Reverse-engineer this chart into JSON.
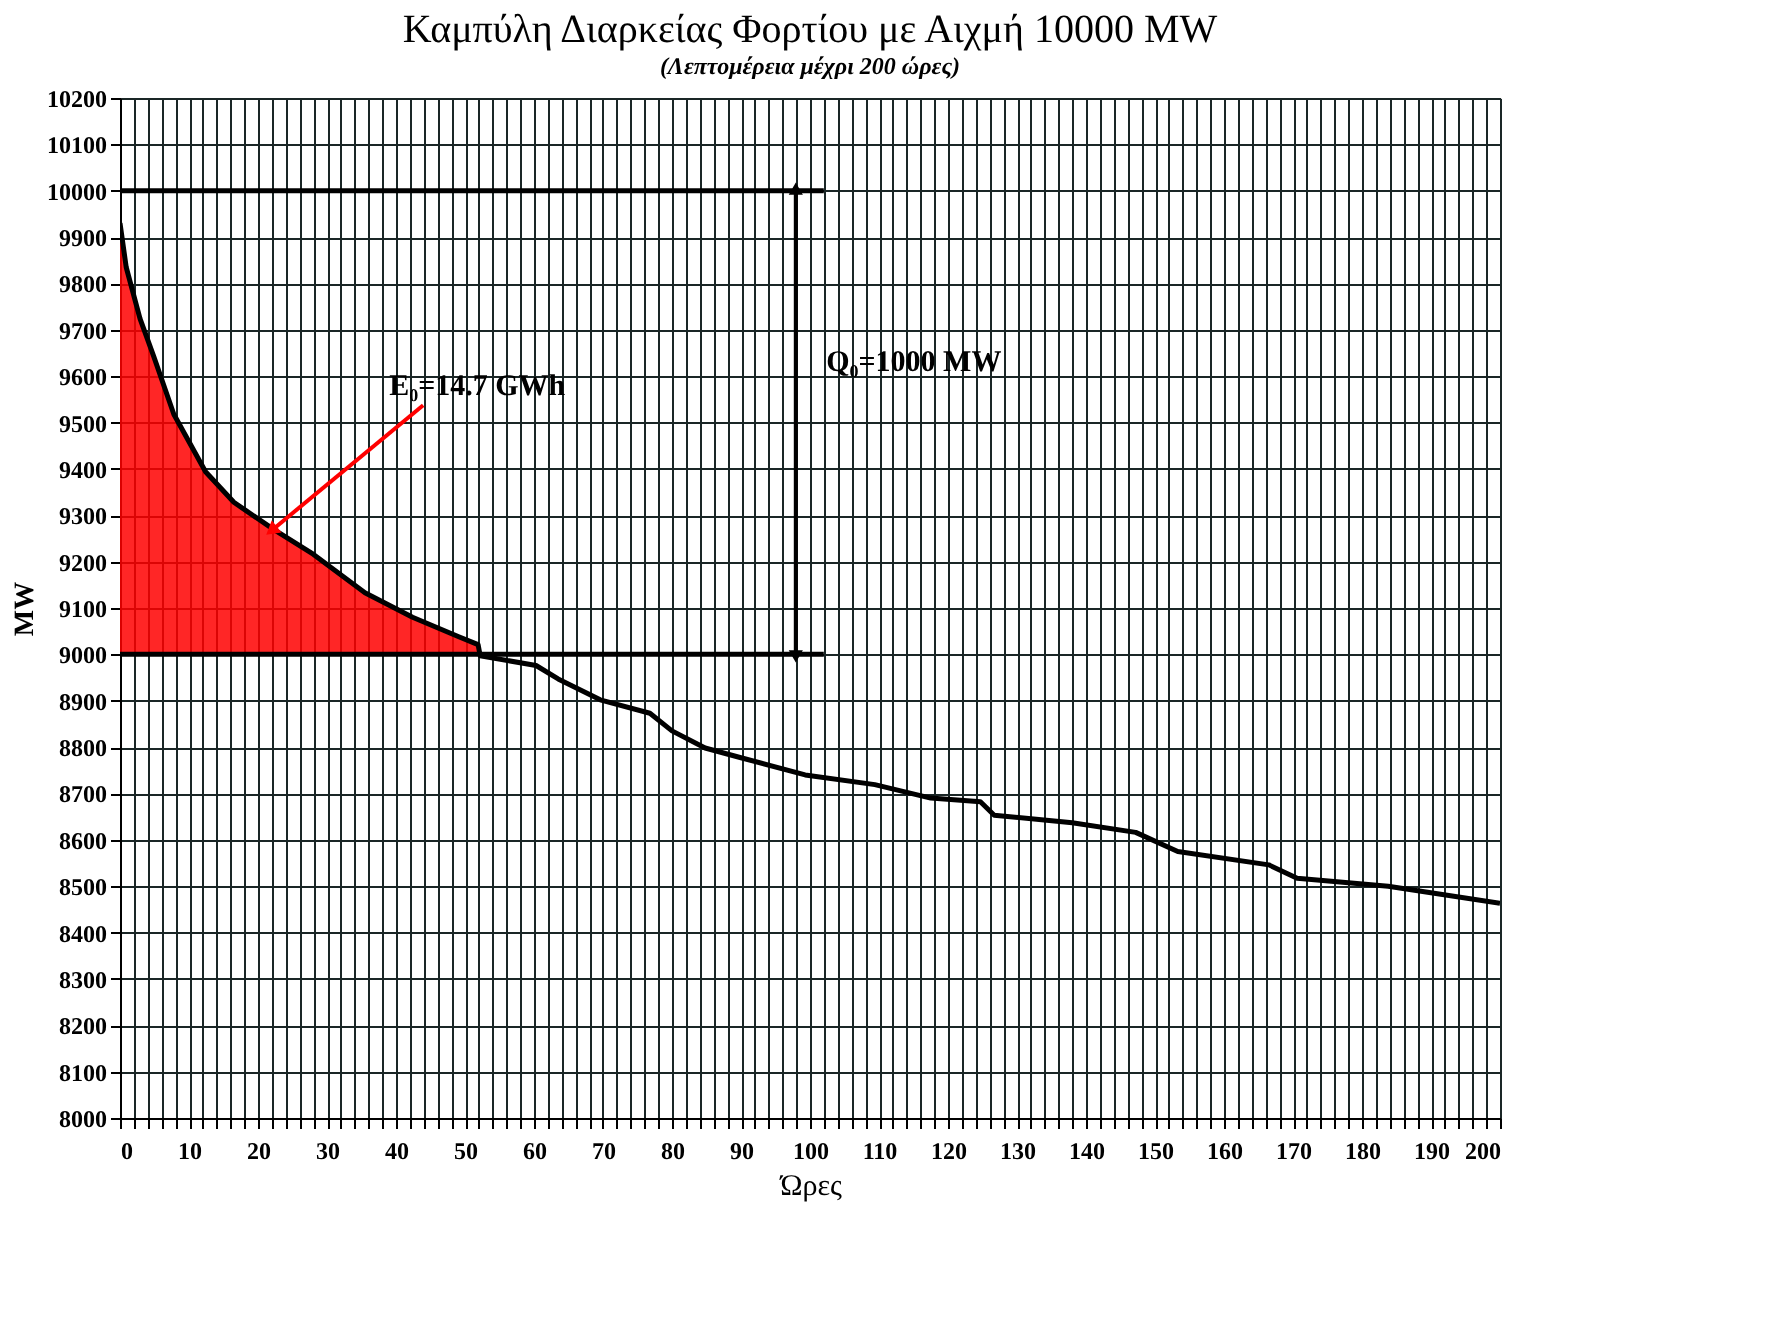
{
  "chart_data": {
    "type": "line",
    "title": "Καμπύλη Διαρκείας Φορτίου με Αιχμή 10000 MW",
    "subtitle": "(Λεπτομέρεια μέχρι 200 ώρες)",
    "xlabel": "Ώρες",
    "ylabel": "MW",
    "xlim": [
      0,
      200
    ],
    "ylim": [
      8000,
      10200
    ],
    "xticks": [
      0,
      {
        "value": 2,
        "label": null
      },
      {
        "value": 4,
        "label": null
      },
      {
        "value": 6,
        "label": null
      },
      {
        "value": 8,
        "label": null
      },
      10,
      {
        "value": 12,
        "label": null
      },
      {
        "value": 14,
        "label": null
      },
      {
        "value": 16,
        "label": null
      },
      {
        "value": 18,
        "label": null
      },
      20,
      {
        "value": 22,
        "label": null
      },
      {
        "value": 24,
        "label": null
      },
      {
        "value": 26,
        "label": null
      },
      {
        "value": 28,
        "label": null
      },
      30,
      {
        "value": 32,
        "label": null
      },
      {
        "value": 34,
        "label": null
      },
      {
        "value": 36,
        "label": null
      },
      {
        "value": 38,
        "label": null
      },
      40,
      {
        "value": 42,
        "label": null
      },
      {
        "value": 44,
        "label": null
      },
      {
        "value": 46,
        "label": null
      },
      {
        "value": 48,
        "label": null
      },
      50,
      {
        "value": 52,
        "label": null
      },
      {
        "value": 54,
        "label": null
      },
      {
        "value": 56,
        "label": null
      },
      {
        "value": 58,
        "label": null
      },
      60,
      {
        "value": 62,
        "label": null
      },
      {
        "value": 64,
        "label": null
      },
      {
        "value": 66,
        "label": null
      },
      {
        "value": 68,
        "label": null
      },
      70,
      {
        "value": 72,
        "label": null
      },
      {
        "value": 74,
        "label": null
      },
      {
        "value": 76,
        "label": null
      },
      {
        "value": 78,
        "label": null
      },
      80,
      {
        "value": 82,
        "label": null
      },
      {
        "value": 84,
        "label": null
      },
      {
        "value": 86,
        "label": null
      },
      {
        "value": 88,
        "label": null
      },
      90,
      {
        "value": 92,
        "label": null
      },
      {
        "value": 94,
        "label": null
      },
      {
        "value": 96,
        "label": null
      },
      {
        "value": 98,
        "label": null
      },
      100,
      {
        "value": 102,
        "label": null
      },
      {
        "value": 104,
        "label": null
      },
      {
        "value": 106,
        "label": null
      },
      {
        "value": 108,
        "label": null
      },
      110,
      {
        "value": 112,
        "label": null
      },
      {
        "value": 114,
        "label": null
      },
      {
        "value": 116,
        "label": null
      },
      {
        "value": 118,
        "label": null
      },
      120,
      {
        "value": 122,
        "label": null
      },
      {
        "value": 124,
        "label": null
      },
      {
        "value": 126,
        "label": null
      },
      {
        "value": 128,
        "label": null
      },
      130,
      {
        "value": 132,
        "label": null
      },
      {
        "value": 134,
        "label": null
      },
      {
        "value": 136,
        "label": null
      },
      {
        "value": 138,
        "label": null
      },
      140,
      {
        "value": 142,
        "label": null
      },
      {
        "value": 144,
        "label": null
      },
      {
        "value": 146,
        "label": null
      },
      {
        "value": 148,
        "label": null
      },
      150,
      {
        "value": 152,
        "label": null
      },
      {
        "value": 154,
        "label": null
      },
      {
        "value": 156,
        "label": null
      },
      {
        "value": 158,
        "label": null
      },
      160,
      {
        "value": 162,
        "label": null
      },
      {
        "value": 164,
        "label": null
      },
      {
        "value": 166,
        "label": null
      },
      {
        "value": 168,
        "label": null
      },
      170,
      {
        "value": 172,
        "label": null
      },
      {
        "value": 174,
        "label": null
      },
      {
        "value": 176,
        "label": null
      },
      {
        "value": 178,
        "label": null
      },
      180,
      {
        "value": 182,
        "label": null
      },
      {
        "value": 184,
        "label": null
      },
      {
        "value": 186,
        "label": null
      },
      {
        "value": 188,
        "label": null
      },
      190,
      {
        "value": 192,
        "label": null
      },
      {
        "value": 194,
        "label": null
      },
      {
        "value": 196,
        "label": null
      },
      {
        "value": 198,
        "label": null
      },
      200
    ],
    "yticks": [
      8000,
      8100,
      8200,
      8300,
      8400,
      8500,
      8600,
      8700,
      8800,
      8900,
      9000,
      9100,
      9200,
      9300,
      9400,
      9500,
      9600,
      9700,
      9800,
      9900,
      10000,
      10100,
      10200
    ],
    "grid": true,
    "series": [
      {
        "type": "area",
        "color": "#ff0000",
        "x": [
          0,
          0.9,
          2.9,
          4.9,
          7.8,
          12.4,
          16.5,
          22.2,
          28,
          35.5,
          42.4,
          49.1,
          51.9,
          52.2
        ],
        "values": [
          9930,
          9835,
          9724,
          9642,
          9518,
          9394,
          9328,
          9270,
          9216,
          9133,
          9080,
          9038,
          9021,
          9000
        ]
      },
      {
        "color": "#000000",
        "x": [
          0,
          0.9,
          2.9,
          4.9,
          7.8,
          12.4,
          16.5,
          22.2,
          28,
          35.5,
          42.4,
          49.1,
          51.9,
          52.2,
          60.3,
          63.5,
          69.6,
          76.8,
          80,
          84.8,
          90,
          99.3,
          109.4,
          117.5,
          124.7,
          126.7,
          138,
          147.2,
          153.3,
          166.5,
          170.6,
          183.8,
          200
        ],
        "values": [
          9930,
          9835,
          9724,
          9642,
          9518,
          9394,
          9328,
          9270,
          9216,
          9133,
          9080,
          9038,
          9021,
          8997,
          8976,
          8947,
          8902,
          8873,
          8835,
          8798,
          8777,
          8740,
          8719,
          8690,
          8682,
          8653,
          8637,
          8616,
          8575,
          8546,
          8517,
          8500,
          8463
        ]
      },
      {
        "color": "#000000",
        "x": [
          0,
          102
        ],
        "values": [
          10000,
          10000
        ]
      },
      {
        "color": "#000000",
        "x": [
          0,
          102
        ],
        "values": [
          9000,
          9000
        ]
      }
    ],
    "annotations": [
      {
        "text": "E₀=14.7 GWh",
        "x": 22.2,
        "y": 9270
      },
      "Q₀=1000 MW"
    ]
  }
}
